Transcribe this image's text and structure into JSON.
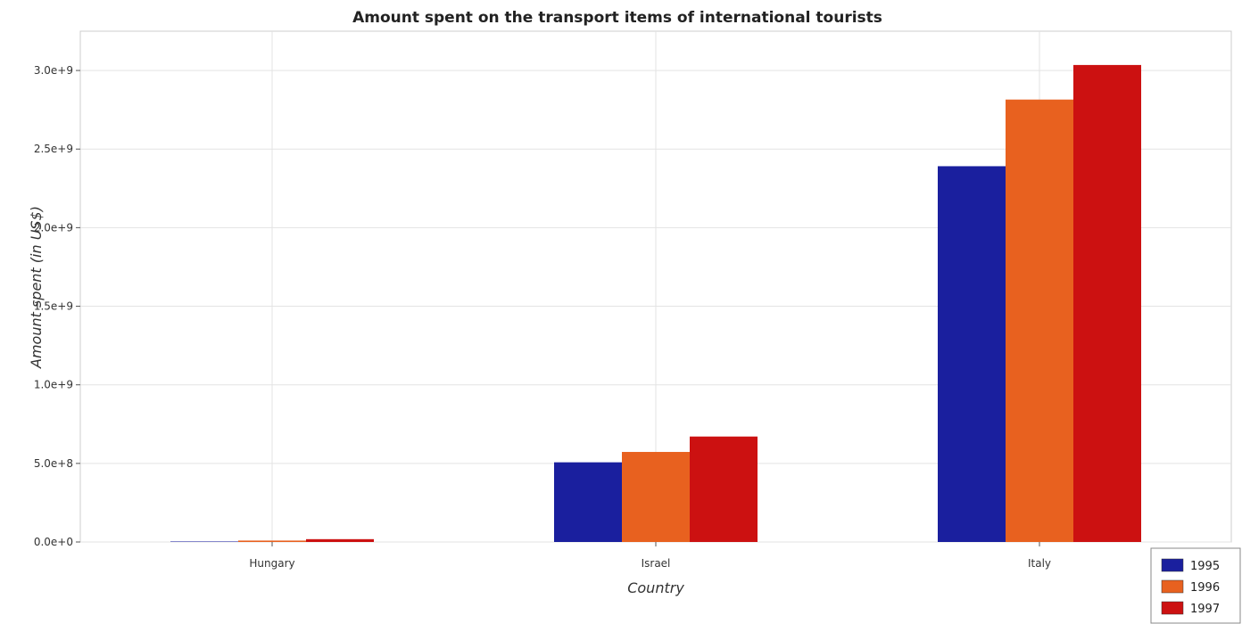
{
  "chart_data": {
    "type": "bar",
    "title": "Amount spent on the transport items of international tourists",
    "xlabel": "Country",
    "ylabel": "Amount spent (in US$)",
    "categories": [
      "Hungary",
      "Israel",
      "Italy"
    ],
    "series": [
      {
        "name": "1995",
        "color": "#1a1f9e",
        "values": [
          3000000,
          507000000,
          2391000000
        ]
      },
      {
        "name": "1996",
        "color": "#e8611f",
        "values": [
          9000000,
          573000000,
          2815000000
        ]
      },
      {
        "name": "1997",
        "color": "#cc1111",
        "values": [
          18000000,
          671000000,
          3035000000
        ]
      }
    ],
    "ylim": [
      0,
      3250000000
    ],
    "yticks": [
      0,
      500000000,
      1000000000,
      1500000000,
      2000000000,
      2500000000,
      3000000000
    ],
    "ytick_labels": [
      "0.0e+0",
      "5.0e+8",
      "1.0e+9",
      "1.5e+9",
      "2.0e+9",
      "2.5e+9",
      "3.0e+9"
    ],
    "grid": true,
    "legend_position": "bottom-right"
  }
}
